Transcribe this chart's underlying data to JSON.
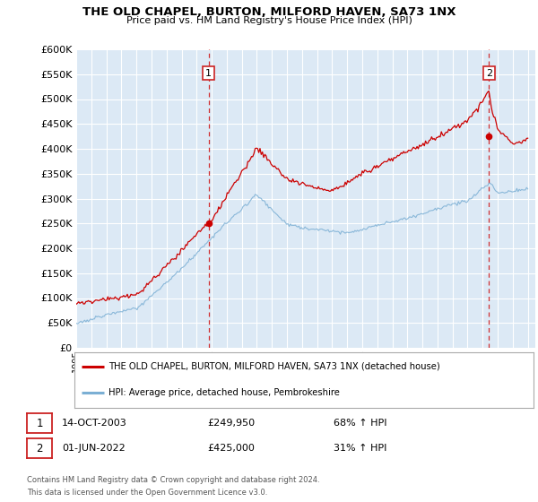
{
  "title": "THE OLD CHAPEL, BURTON, MILFORD HAVEN, SA73 1NX",
  "subtitle": "Price paid vs. HM Land Registry's House Price Index (HPI)",
  "background_color": "#dce9f5",
  "plot_bg_color": "#dce9f5",
  "grid_color": "#c8d8e8",
  "red_color": "#cc0000",
  "blue_color": "#7bafd4",
  "purchase1_price": 249950,
  "purchase1_label": "1",
  "purchase1_year": 2003.79,
  "purchase2_price": 425000,
  "purchase2_label": "2",
  "purchase2_year": 2022.42,
  "legend_line1": "THE OLD CHAPEL, BURTON, MILFORD HAVEN, SA73 1NX (detached house)",
  "legend_line2": "HPI: Average price, detached house, Pembrokeshire",
  "note_line1": "Contains HM Land Registry data © Crown copyright and database right 2024.",
  "note_line2": "This data is licensed under the Open Government Licence v3.0.",
  "table_row1_label": "1",
  "table_row1_date": "14-OCT-2003",
  "table_row1_price": "£249,950",
  "table_row1_hpi": "68% ↑ HPI",
  "table_row2_label": "2",
  "table_row2_date": "01-JUN-2022",
  "table_row2_price": "£425,000",
  "table_row2_hpi": "31% ↑ HPI",
  "ylim_min": 0,
  "ylim_max": 600000,
  "xmin": 1995.0,
  "xmax": 2025.5,
  "xlabel_years": [
    1995,
    1996,
    1997,
    1998,
    1999,
    2000,
    2001,
    2002,
    2003,
    2004,
    2005,
    2006,
    2007,
    2008,
    2009,
    2010,
    2011,
    2012,
    2013,
    2014,
    2015,
    2016,
    2017,
    2018,
    2019,
    2020,
    2021,
    2022,
    2023,
    2024,
    2025
  ]
}
